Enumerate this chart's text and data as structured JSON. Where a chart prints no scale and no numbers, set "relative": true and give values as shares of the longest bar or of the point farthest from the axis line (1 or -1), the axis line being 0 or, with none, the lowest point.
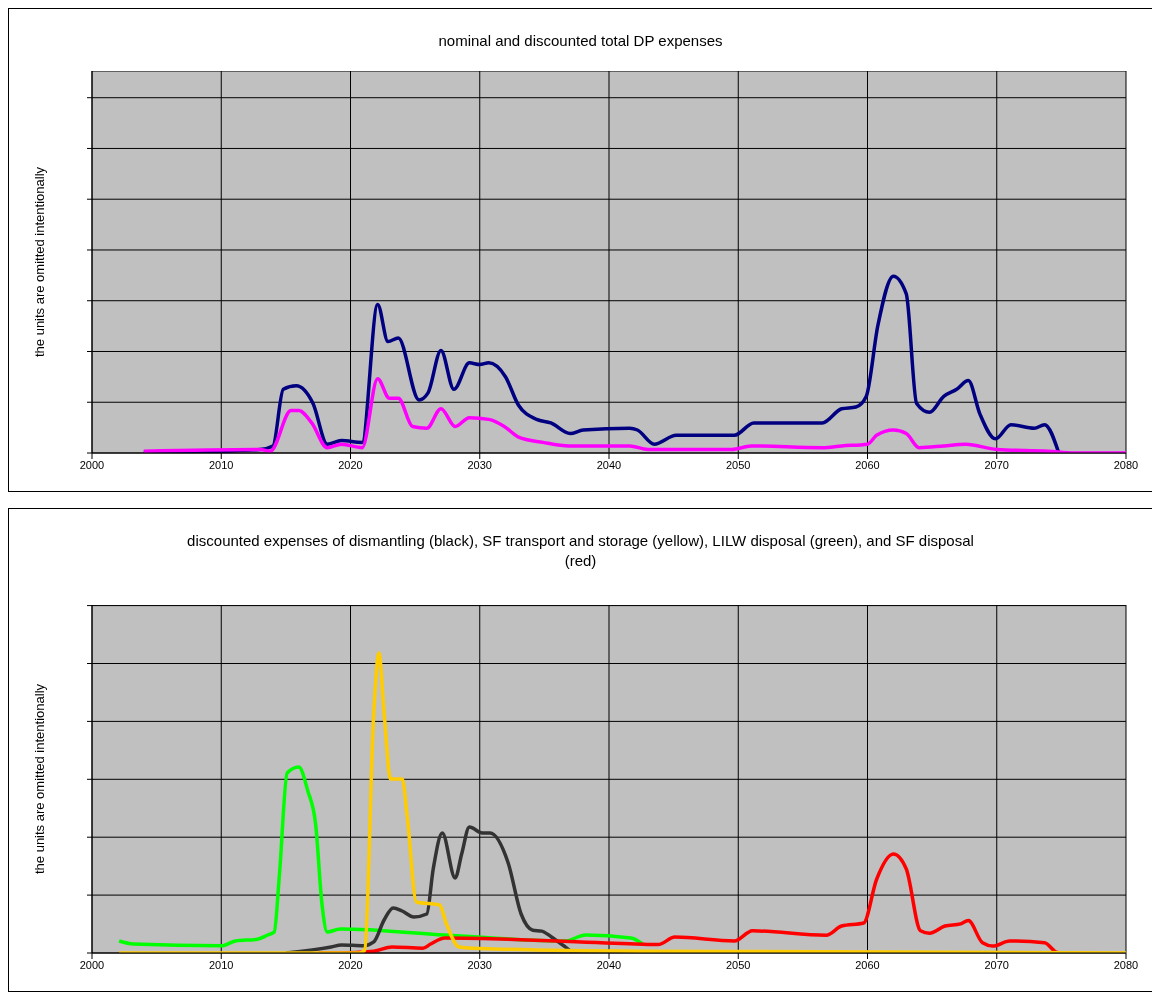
{
  "chart_data": [
    {
      "type": "line",
      "title": "nominal and discounted total DP expenses",
      "ylabel": "the units are omitted intentionally",
      "relative": true,
      "xlim": [
        2000,
        2080
      ],
      "xticks": [
        2000,
        2010,
        2020,
        2030,
        2040,
        2050,
        2060,
        2070,
        2080
      ],
      "grid": true,
      "tick_labels": "x",
      "marker": "none",
      "line_style": "solid",
      "series": [
        {
          "color": "#000080",
          "x": [
            2004,
            2010,
            2013,
            2014,
            2014.8,
            2015.8,
            2017.1,
            2018.2,
            2019.3,
            2020.9,
            2022.1,
            2022.9,
            2023.7,
            2025.3,
            2026,
            2027,
            2028,
            2029.2,
            2030,
            2030.7,
            2032,
            2033,
            2034.4,
            2035.5,
            2037,
            2038,
            2041.6,
            2042.2,
            2043.5,
            2045.2,
            2049.7,
            2051.2,
            2056.5,
            2058,
            2059.1,
            2059.9,
            2060.8,
            2062,
            2063,
            2063.8,
            2064.8,
            2065.9,
            2066.9,
            2067.8,
            2068.7,
            2069.9,
            2071.1,
            2072.9,
            2073.7,
            2074.8
          ],
          "values": [
            0,
            0.01,
            0.02,
            0.04,
            0.36,
            0.38,
            0.28,
            0.05,
            0.07,
            0.06,
            0.84,
            0.63,
            0.65,
            0.3,
            0.34,
            0.58,
            0.36,
            0.51,
            0.5,
            0.51,
            0.43,
            0.27,
            0.19,
            0.17,
            0.11,
            0.13,
            0.14,
            0.13,
            0.05,
            0.1,
            0.1,
            0.17,
            0.17,
            0.25,
            0.26,
            0.32,
            0.72,
            1,
            0.9,
            0.28,
            0.23,
            0.32,
            0.36,
            0.41,
            0.22,
            0.08,
            0.16,
            0.14,
            0.16,
            0
          ]
        },
        {
          "color": "#ff00ff",
          "x": [
            2004,
            2013,
            2013.8,
            2015.4,
            2016,
            2017,
            2018.2,
            2019.3,
            2020.9,
            2022.1,
            2023,
            2023.7,
            2024.8,
            2025.9,
            2027,
            2028.1,
            2029.2,
            2030.7,
            2031.9,
            2033,
            2034.9,
            2036.9,
            2041.6,
            2043,
            2049.5,
            2051,
            2056.5,
            2058,
            2060,
            2060.7,
            2062,
            2063,
            2064,
            2065.9,
            2067.6,
            2070,
            2074,
            2076,
            2080
          ],
          "values": [
            0.01,
            0.02,
            0.01,
            0.24,
            0.24,
            0.17,
            0.03,
            0.05,
            0.03,
            0.42,
            0.31,
            0.31,
            0.15,
            0.14,
            0.25,
            0.15,
            0.2,
            0.19,
            0.15,
            0.09,
            0.06,
            0.04,
            0.04,
            0.02,
            0.02,
            0.04,
            0.03,
            0.04,
            0.05,
            0.1,
            0.13,
            0.11,
            0.03,
            0.04,
            0.05,
            0.02,
            0.01,
            0,
            0
          ]
        }
      ]
    },
    {
      "type": "line",
      "title": "discounted expenses of dismantling (black), SF transport and storage (yellow), LILW disposal (green), and SF disposal (red)",
      "ylabel": "the units are omitted intentionally",
      "relative": true,
      "xlim": [
        2000,
        2080
      ],
      "xticks": [
        2000,
        2010,
        2020,
        2030,
        2040,
        2050,
        2060,
        2070,
        2080
      ],
      "grid": true,
      "tick_labels": "x",
      "marker": "none",
      "line_style": "solid",
      "series": [
        {
          "color": "#00ff00",
          "x": [
            2002.1,
            2003.2,
            2010,
            2011.1,
            2012.8,
            2013.6,
            2014.1,
            2014.5,
            2015.1,
            2016,
            2016.7,
            2017.3,
            2017.8,
            2018.2,
            2019.2,
            2027.3,
            2036.6,
            2038.2,
            2041.7,
            2042.6
          ],
          "values": [
            0.04,
            0.03,
            0.024,
            0.04,
            0.046,
            0.06,
            0.07,
            0.26,
            0.6,
            0.62,
            0.54,
            0.43,
            0.16,
            0.07,
            0.08,
            0.06,
            0.04,
            0.06,
            0.05,
            0.03
          ]
        },
        {
          "color": "#333333",
          "x": [
            2015,
            2018.5,
            2019.3,
            2021,
            2021.8,
            2022.6,
            2023.3,
            2024,
            2024.9,
            2025.9,
            2026.4,
            2027.1,
            2028.1,
            2028.6,
            2029.2,
            2030.2,
            2030.8,
            2032.2,
            2033.2,
            2034.1,
            2034.8,
            2035.5,
            2036.5,
            2037.4,
            2075
          ],
          "values": [
            0,
            0.02,
            0.027,
            0.024,
            0.037,
            0.11,
            0.15,
            0.14,
            0.12,
            0.13,
            0.28,
            0.4,
            0.25,
            0.33,
            0.42,
            0.4,
            0.4,
            0.3,
            0.13,
            0.076,
            0.073,
            0.055,
            0.024,
            0,
            0
          ]
        },
        {
          "color": "#ff0000",
          "x": [
            2017.5,
            2019.1,
            2021.8,
            2023.2,
            2025.6,
            2026.2,
            2027.3,
            2042.05,
            2043.8,
            2045.1,
            2049.7,
            2051.1,
            2056.8,
            2058,
            2059.7,
            2060.7,
            2062,
            2063,
            2064.1,
            2064.8,
            2066,
            2067.2,
            2067.8,
            2068.9,
            2069.7,
            2071,
            2073.7,
            2074.6,
            2075
          ],
          "values": [
            0,
            0,
            0.006,
            0.02,
            0.016,
            0.03,
            0.05,
            0.03,
            0.028,
            0.053,
            0.04,
            0.074,
            0.059,
            0.09,
            0.1,
            0.245,
            0.33,
            0.28,
            0.074,
            0.066,
            0.09,
            0.097,
            0.108,
            0.034,
            0.023,
            0.04,
            0.034,
            0.003,
            0
          ]
        },
        {
          "color": "#ffcc00",
          "x": [
            2002.1,
            2020.7,
            2021.1,
            2021.8,
            2022.2,
            2022.6,
            2023.1,
            2024,
            2024.4,
            2025.1,
            2026.9,
            2027.4,
            2028.4,
            2030,
            2042.3,
            2050,
            2080
          ],
          "values": [
            0,
            0,
            0.01,
            0.8,
            1,
            0.8,
            0.58,
            0.58,
            0.45,
            0.17,
            0.16,
            0.1,
            0.02,
            0.015,
            0.006,
            0.005,
            0
          ]
        }
      ]
    }
  ]
}
